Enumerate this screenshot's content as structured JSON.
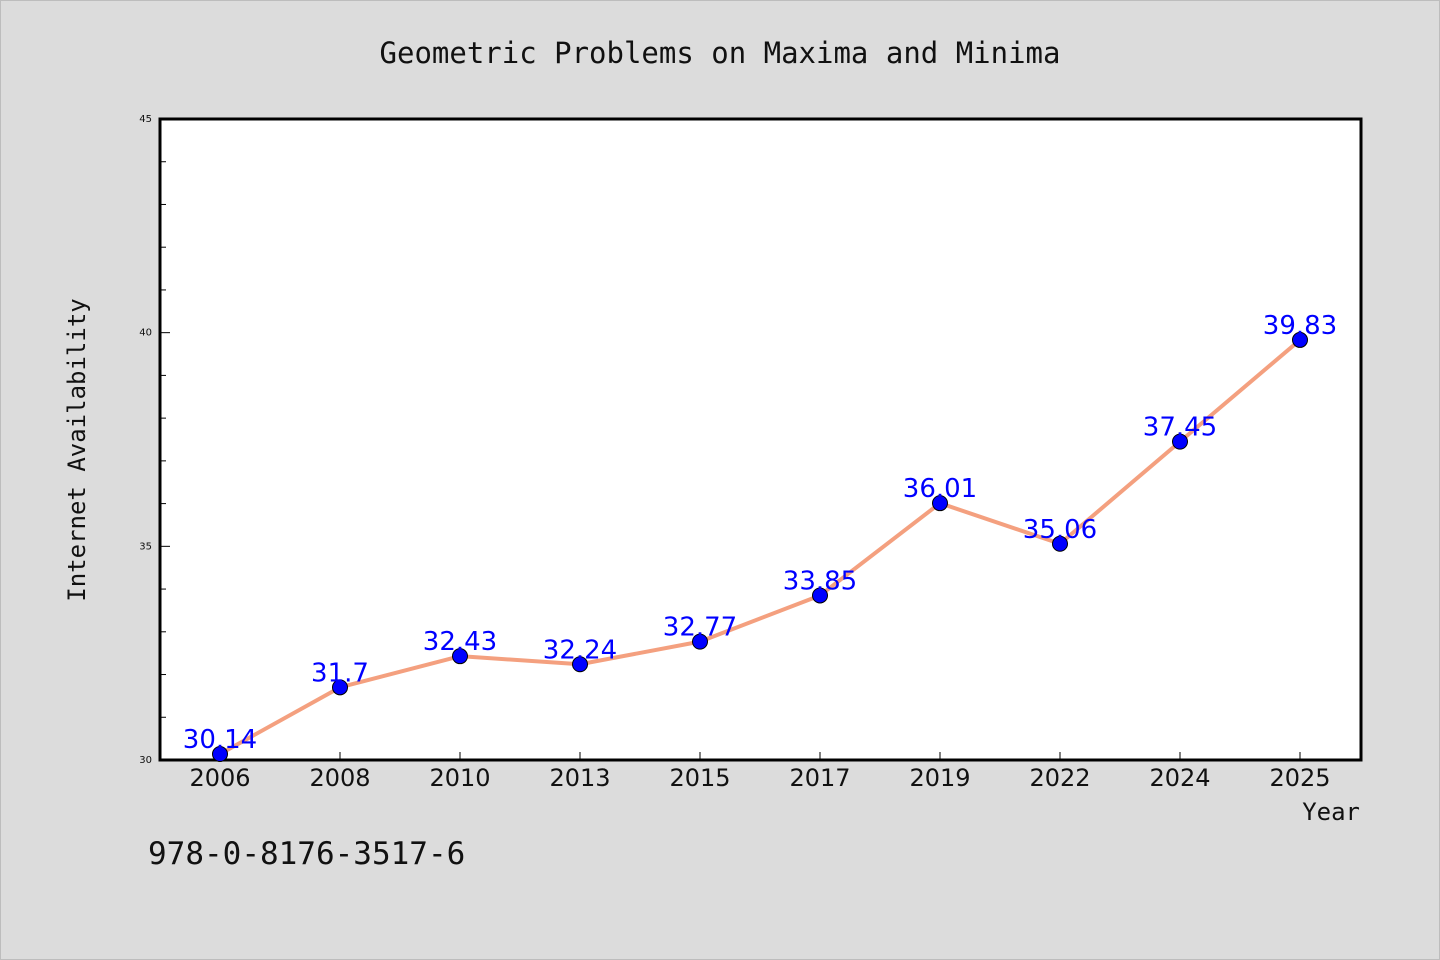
{
  "chart_data": {
    "type": "line",
    "title": "Geometric Problems on Maxima and Minima",
    "xlabel": "Year",
    "ylabel": "Internet Availability",
    "categories": [
      "2006",
      "2008",
      "2010",
      "2013",
      "2015",
      "2017",
      "2019",
      "2022",
      "2024",
      "2025"
    ],
    "series": [
      {
        "values": [
          30.14,
          31.7,
          32.43,
          32.24,
          32.77,
          33.85,
          36.01,
          35.06,
          37.45,
          39.83
        ],
        "labels": [
          "30.14",
          "31.7",
          "32.43",
          "32.24",
          "32.77",
          "33.85",
          "36.01",
          "35.06",
          "37.45",
          "39.83"
        ]
      }
    ],
    "ylim": [
      30,
      45
    ],
    "yticks": [
      "30",
      "35",
      "40",
      "45"
    ],
    "grid": false,
    "line_color": "#f4a07f",
    "marker_color": "#0000ff",
    "label_color": "#0000ff",
    "background_color": "#dcdcdc",
    "plot_background_color": "#ffffff"
  },
  "footer": {
    "code": "978-0-8176-3517-6"
  }
}
